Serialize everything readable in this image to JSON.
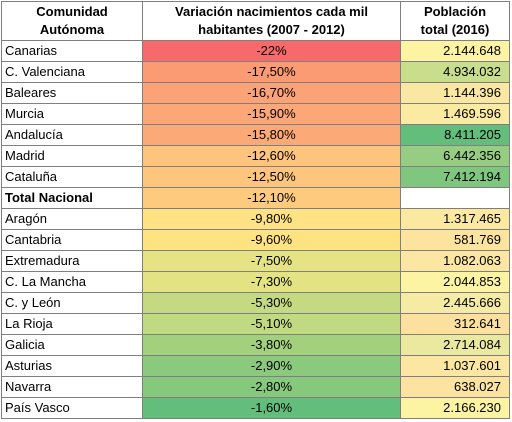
{
  "headers": {
    "comunidad": "Comunidad\nAutónoma",
    "variacion": "Variación nacimientos cada mil\nhabitantes (2007 - 2012)",
    "poblacion": "Población\ntotal (2016)"
  },
  "rows": [
    {
      "name": "Canarias",
      "variation": "-22%",
      "population": "2.144.648",
      "var_color": "#f8696b",
      "pop_color": "#fdf4a3",
      "bold": false
    },
    {
      "name": "C. Valenciana",
      "variation": "-17,50%",
      "population": "4.934.032",
      "var_color": "#fa9b74",
      "pop_color": "#c9de8c",
      "bold": false
    },
    {
      "name": "Baleares",
      "variation": "-16,70%",
      "population": "1.144.396",
      "var_color": "#fba276",
      "pop_color": "#fae8a2",
      "bold": false
    },
    {
      "name": "Murcia",
      "variation": "-15,90%",
      "population": "1.469.596",
      "var_color": "#fba777",
      "pop_color": "#fbeaa2",
      "bold": false
    },
    {
      "name": "Andalucía",
      "variation": "-15,80%",
      "population": "8.411.205",
      "var_color": "#fbaa77",
      "pop_color": "#63be7b",
      "bold": false
    },
    {
      "name": "Madrid",
      "variation": "-12,60%",
      "population": "6.442.356",
      "var_color": "#fdc47d",
      "pop_color": "#97cd83",
      "bold": false
    },
    {
      "name": "Cataluña",
      "variation": "-12,50%",
      "population": "7.412.194",
      "var_color": "#fdc57d",
      "pop_color": "#7fc67f",
      "bold": false
    },
    {
      "name": "Total Nacional",
      "variation": "-12,10%",
      "population": "",
      "var_color": "#fdca7e",
      "pop_color": "#ffffff",
      "bold": true
    },
    {
      "name": "Aragón",
      "variation": "-9,80%",
      "population": "1.317.465",
      "var_color": "#fee283",
      "pop_color": "#fbe9a2",
      "bold": false
    },
    {
      "name": "Cantabria",
      "variation": "-9,60%",
      "population": "581.769",
      "var_color": "#fee383",
      "pop_color": "#fce49f",
      "bold": false
    },
    {
      "name": "Extremadura",
      "variation": "-7,50%",
      "population": "1.082.063",
      "var_color": "#e5e383",
      "pop_color": "#fbe7a1",
      "bold": false
    },
    {
      "name": "C. La Mancha",
      "variation": "-7,30%",
      "population": "2.044.853",
      "var_color": "#e3e383",
      "pop_color": "#fdf4a3",
      "bold": false
    },
    {
      "name": "C. y León",
      "variation": "-5,30%",
      "population": "2.445.666",
      "var_color": "#c4da80",
      "pop_color": "#f6eba3",
      "bold": false
    },
    {
      "name": "La Rioja",
      "variation": "-5,10%",
      "population": "312.641",
      "var_color": "#c1d980",
      "pop_color": "#fce19e",
      "bold": false
    },
    {
      "name": "Galicia",
      "variation": "-3,80%",
      "population": "2.714.084",
      "var_color": "#a2d07d",
      "pop_color": "#ebe8a0",
      "bold": false
    },
    {
      "name": "Asturias",
      "variation": "-2,90%",
      "population": "1.037.601",
      "var_color": "#8bca7c",
      "pop_color": "#fbe7a1",
      "bold": false
    },
    {
      "name": "Navarra",
      "variation": "-2,80%",
      "population": "638.027",
      "var_color": "#87c97c",
      "pop_color": "#fce39f",
      "bold": false
    },
    {
      "name": "País Vasco",
      "variation": "-1,60%",
      "population": "2.166.230",
      "var_color": "#63be7b",
      "pop_color": "#fdf4a3",
      "bold": false
    }
  ]
}
